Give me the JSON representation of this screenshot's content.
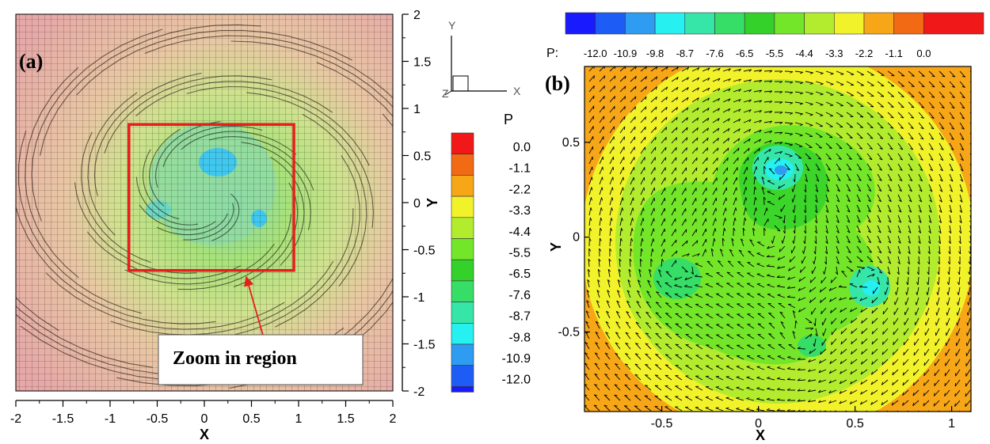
{
  "chart_data": [
    {
      "type": "contour",
      "panel_label": "(a)",
      "xlabel": "X",
      "ylabel": "Y",
      "xlim": [
        -2,
        2
      ],
      "ylim": [
        -2,
        2
      ],
      "x_ticks": [
        "-2",
        "-1.5",
        "-1",
        "-0.5",
        "0",
        "0.5",
        "1",
        "1.5",
        "2"
      ],
      "y_ticks": [
        "2",
        "1.5",
        "1",
        "0.5",
        "0",
        "-0.5",
        "-1",
        "-1.5",
        "-2"
      ],
      "x_tick_values": [
        -2,
        -1.5,
        -1,
        -0.5,
        0,
        0.5,
        1,
        1.5,
        2
      ],
      "y_tick_values": [
        2,
        1.5,
        1,
        0.5,
        0,
        -0.5,
        -1,
        -1.5,
        -2
      ],
      "zoom_region": {
        "x": [
          -0.8,
          0.95
        ],
        "y": [
          -0.72,
          0.83
        ]
      },
      "annotation": "Zoom in region",
      "legend": {
        "title": "P",
        "levels": [
          "0.0",
          "-1.1",
          "-2.2",
          "-3.3",
          "-4.4",
          "-5.5",
          "-6.5",
          "-7.6",
          "-8.7",
          "-9.8",
          "-10.9",
          "-12.0"
        ]
      },
      "axis_triad": {
        "x": "X",
        "y": "Y",
        "z": "Z"
      }
    },
    {
      "type": "contour",
      "panel_label": "(b)",
      "xlabel": "X",
      "ylabel": "Y",
      "xlim": [
        -0.9,
        1.1
      ],
      "ylim": [
        -0.92,
        0.9
      ],
      "x_ticks": [
        "-0.5",
        "0",
        "0.5",
        "1"
      ],
      "y_ticks": [
        "0.5",
        "0",
        "-0.5"
      ],
      "x_tick_values": [
        -0.5,
        0,
        0.5,
        1
      ],
      "y_tick_values": [
        0.5,
        0,
        -0.5
      ],
      "vortices": [
        {
          "x": 0.11,
          "y": 0.37
        },
        {
          "x": -0.43,
          "y": -0.18
        },
        {
          "x": 0.58,
          "y": -0.23
        },
        {
          "x": 0.25,
          "y": -0.55
        }
      ],
      "legend": {
        "title": "P:",
        "levels": [
          "-12.0",
          "-10.9",
          "-9.8",
          "-8.7",
          "-7.6",
          "-6.5",
          "-5.5",
          "-4.4",
          "-3.3",
          "-2.2",
          "-1.1",
          "0.0"
        ]
      }
    }
  ],
  "palette": [
    "#1a1aff",
    "#1e5df5",
    "#2e9cf0",
    "#26f0f0",
    "#36e6a8",
    "#36dd66",
    "#33d12a",
    "#73e62a",
    "#b3ec2e",
    "#f2f22a",
    "#f7a617",
    "#f26a14",
    "#f01818"
  ]
}
